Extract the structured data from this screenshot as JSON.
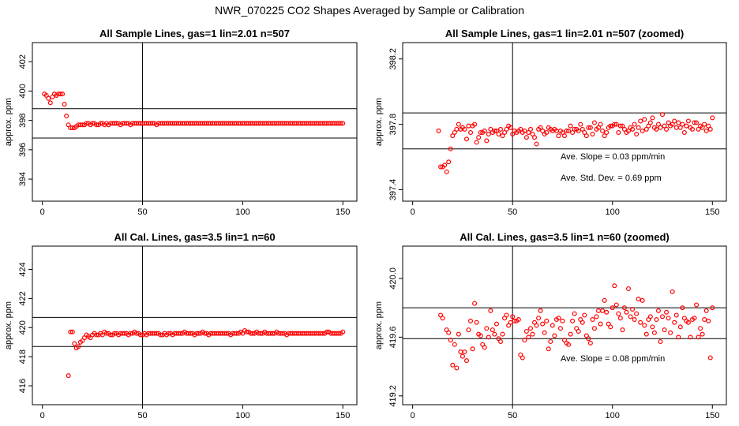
{
  "page": {
    "title": "NWR_070225  CO2 Shapes Averaged by Sample or Calibration"
  },
  "chart_data": [
    {
      "type": "scatter",
      "title": "All Sample Lines, gas=1 lin=2.01 n=507",
      "xlabel": "",
      "ylabel": "approx. ppm",
      "xlim": [
        -5,
        157
      ],
      "ylim": [
        392.5,
        403.3
      ],
      "xticks": [
        "0",
        "50",
        "100",
        "150"
      ],
      "yticks": [
        "394",
        "396",
        "398",
        "400",
        "402"
      ],
      "vline": 50,
      "hlines": [
        396.8,
        398.8
      ],
      "point_color": "#ff0000",
      "annotations": [],
      "x": [
        1,
        2,
        3,
        4,
        5,
        6,
        7,
        8,
        9,
        10,
        11,
        12,
        13,
        14,
        15,
        16,
        17,
        18,
        19,
        20,
        21,
        22,
        23,
        24,
        25,
        26,
        27,
        28,
        29,
        30,
        31,
        32,
        33,
        34,
        35,
        36,
        37,
        38,
        39,
        40,
        41,
        42,
        43,
        44,
        45,
        46,
        47,
        48,
        49,
        50,
        51,
        52,
        53,
        54,
        55,
        56,
        57,
        58,
        59,
        60,
        61,
        62,
        63,
        64,
        65,
        66,
        67,
        68,
        69,
        70,
        71,
        72,
        73,
        74,
        75,
        76,
        77,
        78,
        79,
        80,
        81,
        82,
        83,
        84,
        85,
        86,
        87,
        88,
        89,
        90,
        91,
        92,
        93,
        94,
        95,
        96,
        97,
        98,
        99,
        100,
        101,
        102,
        103,
        104,
        105,
        106,
        107,
        108,
        109,
        110,
        111,
        112,
        113,
        114,
        115,
        116,
        117,
        118,
        119,
        120,
        121,
        122,
        123,
        124,
        125,
        126,
        127,
        128,
        129,
        130,
        131,
        132,
        133,
        134,
        135,
        136,
        137,
        138,
        139,
        140,
        141,
        142,
        143,
        144,
        145,
        146,
        147,
        148,
        149,
        150
      ],
      "y": [
        399.8,
        399.7,
        399.5,
        399.2,
        399.6,
        399.8,
        399.7,
        399.8,
        399.8,
        399.8,
        399.1,
        398.3,
        397.7,
        397.5,
        397.5,
        397.5,
        397.6,
        397.7,
        397.7,
        397.7,
        397.7,
        397.8,
        397.8,
        397.7,
        397.8,
        397.8,
        397.7,
        397.7,
        397.8,
        397.8,
        397.7,
        397.8,
        397.7,
        397.8,
        397.8,
        397.8,
        397.8,
        397.8,
        397.7,
        397.8,
        397.8,
        397.8,
        397.8,
        397.7,
        397.8,
        397.8,
        397.8,
        397.8,
        397.8,
        397.8,
        397.8,
        397.8,
        397.8,
        397.8,
        397.8,
        397.8,
        397.7,
        397.8,
        397.8,
        397.8,
        397.8,
        397.8,
        397.8,
        397.8,
        397.8,
        397.8,
        397.8,
        397.8,
        397.8,
        397.8,
        397.8,
        397.8,
        397.8,
        397.8,
        397.8,
        397.8,
        397.8,
        397.8,
        397.8,
        397.8,
        397.8,
        397.8,
        397.8,
        397.8,
        397.8,
        397.8,
        397.8,
        397.8,
        397.8,
        397.8,
        397.8,
        397.8,
        397.8,
        397.8,
        397.8,
        397.8,
        397.8,
        397.8,
        397.8,
        397.8,
        397.8,
        397.8,
        397.8,
        397.8,
        397.8,
        397.8,
        397.8,
        397.8,
        397.8,
        397.8,
        397.8,
        397.8,
        397.8,
        397.8,
        397.8,
        397.8,
        397.8,
        397.8,
        397.8,
        397.8,
        397.8,
        397.8,
        397.8,
        397.8,
        397.8,
        397.8,
        397.8,
        397.8,
        397.8,
        397.8,
        397.8,
        397.8,
        397.8,
        397.8,
        397.8,
        397.8,
        397.8,
        397.8,
        397.8,
        397.8,
        397.8,
        397.8,
        397.8,
        397.8,
        397.8,
        397.8,
        397.8,
        397.8,
        397.8,
        397.8
      ]
    },
    {
      "type": "scatter",
      "title": "All Sample Lines, gas=1 lin=2.01 n=507 (zoomed)",
      "xlabel": "",
      "ylabel": "approx. ppm",
      "xlim": [
        -5,
        157
      ],
      "ylim": [
        397.33,
        398.3
      ],
      "xticks": [
        "0",
        "50",
        "100",
        "150"
      ],
      "yticks": [
        "397.4",
        "397.8",
        "398.2"
      ],
      "vline": 50,
      "hlines": [
        397.65,
        397.87
      ],
      "point_color": "#ff0000",
      "annotations": [
        {
          "label": "Ave. Slope =",
          "value": "0.03",
          "unit": "ppm/min"
        },
        {
          "label": "Ave. Std. Dev. =",
          "value": "0.69",
          "unit": "ppm"
        }
      ],
      "x": [
        13,
        14,
        15,
        16,
        17,
        18,
        19,
        20,
        21,
        22,
        23,
        24,
        25,
        26,
        27,
        28,
        29,
        30,
        31,
        32,
        33,
        34,
        35,
        36,
        37,
        38,
        39,
        40,
        41,
        42,
        43,
        44,
        45,
        46,
        47,
        48,
        49,
        50,
        51,
        52,
        53,
        54,
        55,
        56,
        57,
        58,
        59,
        60,
        61,
        62,
        63,
        64,
        65,
        66,
        67,
        68,
        69,
        70,
        71,
        72,
        73,
        74,
        75,
        76,
        77,
        78,
        79,
        80,
        81,
        82,
        83,
        84,
        85,
        86,
        87,
        88,
        89,
        90,
        91,
        92,
        93,
        94,
        95,
        96,
        97,
        98,
        99,
        100,
        101,
        102,
        103,
        104,
        105,
        106,
        107,
        108,
        109,
        110,
        111,
        112,
        113,
        114,
        115,
        116,
        117,
        118,
        119,
        120,
        121,
        122,
        123,
        124,
        125,
        126,
        127,
        128,
        129,
        130,
        131,
        132,
        133,
        134,
        135,
        136,
        137,
        138,
        139,
        140,
        141,
        142,
        143,
        144,
        145,
        146,
        147,
        148,
        149,
        150
      ],
      "y": [
        397.76,
        397.54,
        397.54,
        397.55,
        397.51,
        397.57,
        397.65,
        397.73,
        397.75,
        397.77,
        397.8,
        397.77,
        397.78,
        397.77,
        397.71,
        397.79,
        397.75,
        397.79,
        397.8,
        397.69,
        397.72,
        397.75,
        397.75,
        397.76,
        397.7,
        397.74,
        397.77,
        397.75,
        397.76,
        397.76,
        397.74,
        397.77,
        397.73,
        397.75,
        397.77,
        397.79,
        397.78,
        397.74,
        397.76,
        397.75,
        397.76,
        397.77,
        397.75,
        397.76,
        397.72,
        397.75,
        397.77,
        397.74,
        397.72,
        397.68,
        397.77,
        397.78,
        397.76,
        397.74,
        397.75,
        397.78,
        397.77,
        397.76,
        397.77,
        397.76,
        397.73,
        397.76,
        397.75,
        397.73,
        397.76,
        397.76,
        397.79,
        397.75,
        397.77,
        397.77,
        397.76,
        397.8,
        397.77,
        397.75,
        397.73,
        397.78,
        397.78,
        397.74,
        397.81,
        397.77,
        397.78,
        397.8,
        397.76,
        397.73,
        397.75,
        397.78,
        397.79,
        397.79,
        397.8,
        397.8,
        397.75,
        397.79,
        397.79,
        397.77,
        397.75,
        397.76,
        397.78,
        397.77,
        397.8,
        397.74,
        397.78,
        397.82,
        397.76,
        397.83,
        397.77,
        397.79,
        397.81,
        397.84,
        397.78,
        397.77,
        397.8,
        397.78,
        397.86,
        397.79,
        397.77,
        397.81,
        397.79,
        397.8,
        397.82,
        397.78,
        397.81,
        397.78,
        397.8,
        397.75,
        397.79,
        397.82,
        397.78,
        397.77,
        397.81,
        397.81,
        397.77,
        397.79,
        397.78,
        397.8,
        397.76,
        397.79,
        397.77,
        397.84
      ]
    },
    {
      "type": "scatter",
      "title": "All Cal. Lines, gas=3.5 lin=1 n=60",
      "xlabel": "",
      "ylabel": "approx. ppm",
      "xlim": [
        -5,
        157
      ],
      "ylim": [
        414.7,
        425.6
      ],
      "xticks": [
        "0",
        "50",
        "100",
        "150"
      ],
      "yticks": [
        "416",
        "418",
        "420",
        "422",
        "424"
      ],
      "vline": 50,
      "hlines": [
        418.7,
        420.7
      ],
      "point_color": "#ff0000",
      "annotations": [],
      "x": [
        13,
        14,
        15,
        16,
        17,
        18,
        19,
        20,
        21,
        22,
        23,
        24,
        25,
        26,
        27,
        28,
        29,
        30,
        31,
        32,
        33,
        34,
        35,
        36,
        37,
        38,
        39,
        40,
        41,
        42,
        43,
        44,
        45,
        46,
        47,
        48,
        49,
        50,
        51,
        52,
        53,
        54,
        55,
        56,
        57,
        58,
        59,
        60,
        61,
        62,
        63,
        64,
        65,
        66,
        67,
        68,
        69,
        70,
        71,
        72,
        73,
        74,
        75,
        76,
        77,
        78,
        79,
        80,
        81,
        82,
        83,
        84,
        85,
        86,
        87,
        88,
        89,
        90,
        91,
        92,
        93,
        94,
        95,
        96,
        97,
        98,
        99,
        100,
        101,
        102,
        103,
        104,
        105,
        106,
        107,
        108,
        109,
        110,
        111,
        112,
        113,
        114,
        115,
        116,
        117,
        118,
        119,
        120,
        121,
        122,
        123,
        124,
        125,
        126,
        127,
        128,
        129,
        130,
        131,
        132,
        133,
        134,
        135,
        136,
        137,
        138,
        139,
        140,
        141,
        142,
        143,
        144,
        145,
        146,
        147,
        148,
        149,
        150
      ],
      "y": [
        416.7,
        419.7,
        419.7,
        418.9,
        418.6,
        418.7,
        419.0,
        419.1,
        419.3,
        419.5,
        419.4,
        419.3,
        419.5,
        419.6,
        419.5,
        419.5,
        419.6,
        419.5,
        419.7,
        419.6,
        419.6,
        419.5,
        419.5,
        419.6,
        419.6,
        419.5,
        419.6,
        419.6,
        419.6,
        419.6,
        419.5,
        419.6,
        419.6,
        419.7,
        419.6,
        419.6,
        419.5,
        419.5,
        419.6,
        419.5,
        419.6,
        419.6,
        419.6,
        419.6,
        419.6,
        419.6,
        419.5,
        419.5,
        419.6,
        419.5,
        419.6,
        419.6,
        419.5,
        419.6,
        419.6,
        419.6,
        419.6,
        419.6,
        419.7,
        419.6,
        419.6,
        419.6,
        419.6,
        419.5,
        419.6,
        419.6,
        419.6,
        419.7,
        419.6,
        419.6,
        419.5,
        419.6,
        419.6,
        419.6,
        419.6,
        419.6,
        419.6,
        419.6,
        419.6,
        419.6,
        419.6,
        419.5,
        419.6,
        419.6,
        419.6,
        419.6,
        419.7,
        419.6,
        419.8,
        419.7,
        419.7,
        419.6,
        419.6,
        419.6,
        419.7,
        419.6,
        419.6,
        419.6,
        419.7,
        419.6,
        419.6,
        419.6,
        419.6,
        419.6,
        419.7,
        419.6,
        419.6,
        419.6,
        419.6,
        419.5,
        419.6,
        419.6,
        419.6,
        419.6,
        419.6,
        419.6,
        419.6,
        419.6,
        419.6,
        419.6,
        419.6,
        419.6,
        419.6,
        419.6,
        419.6,
        419.6,
        419.6,
        419.6,
        419.6,
        419.7,
        419.7,
        419.6,
        419.6,
        419.6,
        419.6,
        419.6,
        419.6,
        419.7
      ]
    },
    {
      "type": "scatter",
      "title": "All Cal. Lines, gas=3.5 lin=1 n=60 (zoomed)",
      "xlabel": "",
      "ylabel": "approx. ppm",
      "xlim": [
        -5,
        157
      ],
      "ylim": [
        419.14,
        420.22
      ],
      "xticks": [
        "0",
        "50",
        "100",
        "150"
      ],
      "yticks": [
        "419.2",
        "419.6",
        "420.0"
      ],
      "vline": 50,
      "hlines": [
        419.59,
        419.8
      ],
      "point_color": "#ff0000",
      "annotations": [
        {
          "label": "Ave. Slope =",
          "value": "0.08",
          "unit": "ppm/min"
        }
      ],
      "x": [
        14,
        15,
        17,
        18,
        19,
        20,
        21,
        22,
        23,
        24,
        25,
        26,
        27,
        28,
        29,
        30,
        31,
        32,
        33,
        34,
        35,
        36,
        37,
        38,
        39,
        40,
        41,
        42,
        43,
        44,
        45,
        46,
        47,
        48,
        49,
        50,
        51,
        52,
        53,
        54,
        55,
        56,
        57,
        58,
        59,
        60,
        61,
        62,
        63,
        64,
        65,
        66,
        67,
        68,
        69,
        70,
        71,
        72,
        73,
        74,
        75,
        76,
        77,
        78,
        79,
        80,
        81,
        82,
        83,
        84,
        85,
        86,
        87,
        88,
        89,
        90,
        91,
        92,
        93,
        94,
        95,
        96,
        97,
        98,
        99,
        100,
        101,
        102,
        103,
        104,
        105,
        106,
        107,
        108,
        109,
        110,
        111,
        112,
        113,
        114,
        115,
        116,
        117,
        118,
        119,
        120,
        121,
        122,
        123,
        124,
        125,
        126,
        127,
        128,
        129,
        130,
        131,
        132,
        133,
        134,
        135,
        136,
        137,
        138,
        139,
        140,
        141,
        142,
        143,
        144,
        145,
        146,
        147,
        148,
        149,
        150
      ],
      "y": [
        419.75,
        419.73,
        419.65,
        419.63,
        419.58,
        419.41,
        419.55,
        419.39,
        419.62,
        419.5,
        419.47,
        419.5,
        419.44,
        419.65,
        419.71,
        419.52,
        419.83,
        419.7,
        419.62,
        419.61,
        419.55,
        419.53,
        419.66,
        419.6,
        419.78,
        419.65,
        419.62,
        419.69,
        419.59,
        419.57,
        419.62,
        419.73,
        419.75,
        419.68,
        419.7,
        419.74,
        419.71,
        419.71,
        419.72,
        419.48,
        419.46,
        419.58,
        419.64,
        419.6,
        419.66,
        419.62,
        419.7,
        419.68,
        419.73,
        419.78,
        419.69,
        419.63,
        419.71,
        419.52,
        419.57,
        419.68,
        419.61,
        419.72,
        419.73,
        419.66,
        419.71,
        419.58,
        419.56,
        419.55,
        419.62,
        419.71,
        419.76,
        419.66,
        419.64,
        419.72,
        419.7,
        419.75,
        419.61,
        419.59,
        419.56,
        419.72,
        419.66,
        419.74,
        419.78,
        419.69,
        419.78,
        419.85,
        419.77,
        419.69,
        419.67,
        419.8,
        419.95,
        419.82,
        419.76,
        419.73,
        419.65,
        419.8,
        419.77,
        419.93,
        419.74,
        419.79,
        419.72,
        419.76,
        419.86,
        419.7,
        419.85,
        419.68,
        419.62,
        419.72,
        419.74,
        419.67,
        419.63,
        419.72,
        419.78,
        419.57,
        419.74,
        419.65,
        419.77,
        419.73,
        419.63,
        419.91,
        419.7,
        419.75,
        419.6,
        419.67,
        419.8,
        419.73,
        419.71,
        419.7,
        419.6,
        419.72,
        419.73,
        419.82,
        419.6,
        419.66,
        419.62,
        419.72,
        419.78,
        419.71,
        419.46,
        419.8
      ]
    }
  ]
}
